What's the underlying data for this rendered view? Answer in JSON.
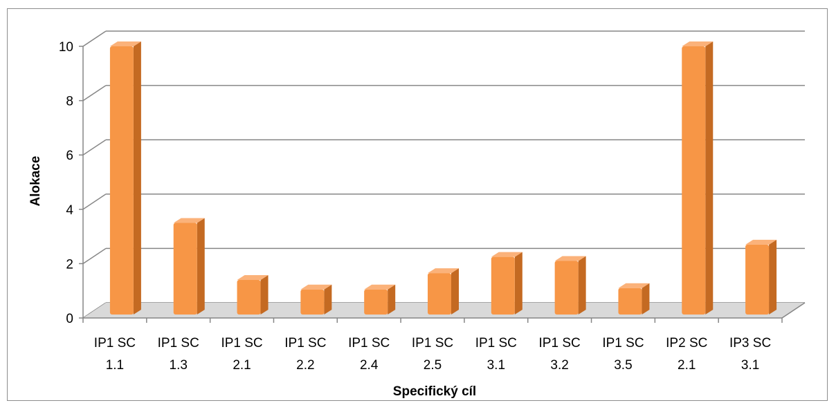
{
  "chart_data": {
    "type": "bar",
    "style": "3d-column",
    "categories": [
      [
        "IP1 SC",
        "1.1"
      ],
      [
        "IP1 SC",
        "1.3"
      ],
      [
        "IP1 SC",
        "2.1"
      ],
      [
        "IP1 SC",
        "2.2"
      ],
      [
        "IP1 SC",
        "2.4"
      ],
      [
        "IP1 SC",
        "2.5"
      ],
      [
        "IP1 SC",
        "3.1"
      ],
      [
        "IP1 SC",
        "3.2"
      ],
      [
        "IP1 SC",
        "3.5"
      ],
      [
        "IP2 SC",
        "2.1"
      ],
      [
        "IP3 SC",
        "3.1"
      ]
    ],
    "values": [
      10.0,
      3.5,
      1.4,
      1.05,
      1.05,
      1.65,
      2.25,
      2.1,
      1.1,
      10.0,
      2.7
    ],
    "xlabel": "Specifický cíl",
    "ylabel": "Alokace",
    "ylim": [
      0,
      10
    ],
    "yticks": [
      0,
      2,
      4,
      6,
      8,
      10
    ],
    "grid": true,
    "colors": {
      "bar_front": "#f79646",
      "bar_side": "#c46a22",
      "bar_top": "#fbb27a",
      "grid": "#868686",
      "floor": "#d9d9d9"
    }
  }
}
